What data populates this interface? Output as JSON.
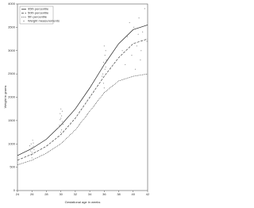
{
  "chart_data": {
    "type": "line",
    "x_label": "Gestational age in weeks",
    "y_label": "Weight in grams",
    "xlim": [
      24,
      42
    ],
    "xticks": [
      24,
      26,
      28,
      30,
      32,
      34,
      36,
      38,
      40,
      42
    ],
    "ylim": [
      0,
      4000
    ],
    "yticks": [
      0,
      500,
      1000,
      1500,
      2000,
      2500,
      3000,
      3500,
      4000
    ],
    "legend": "top-left",
    "series": [
      {
        "name": "95th percentile",
        "type": "line",
        "color": "#222222",
        "line_style": "solid",
        "x": [
          24,
          26,
          28,
          30,
          32,
          34,
          36,
          38,
          40,
          42
        ],
        "values": [
          750,
          900,
          1100,
          1400,
          1750,
          2200,
          2700,
          3150,
          3450,
          3550
        ]
      },
      {
        "name": "50th percentile",
        "type": "line",
        "color": "#444444",
        "line_style": "dashed",
        "x": [
          24,
          26,
          28,
          30,
          32,
          34,
          36,
          38,
          40,
          42
        ],
        "values": [
          650,
          780,
          950,
          1200,
          1550,
          2000,
          2450,
          2850,
          3150,
          3250
        ]
      },
      {
        "name": "5th percentile",
        "type": "line",
        "color": "#222222",
        "line_style": "dotted",
        "x": [
          24,
          26,
          28,
          30,
          32,
          34,
          36,
          38,
          40,
          42
        ],
        "values": [
          550,
          650,
          800,
          1000,
          1300,
          1700,
          2100,
          2350,
          2450,
          2500
        ]
      },
      {
        "name": "Weight measurements",
        "type": "scatter",
        "color": "#999999",
        "x": [
          25.8,
          26.0,
          26.1,
          25.9,
          26.2,
          26.0,
          26.3,
          25.7,
          26.1,
          26.0,
          25.9,
          26.2,
          29.8,
          30.0,
          30.1,
          29.9,
          30.2,
          30.0,
          30.3,
          29.7,
          30.1,
          30.0,
          29.9,
          30.2,
          35.8,
          36.0,
          36.1,
          35.9,
          36.2,
          36.0,
          36.3,
          35.7,
          36.1,
          36.0,
          35.9,
          36.2,
          38.5,
          39.2,
          39.8,
          40.1,
          40.5,
          40.8,
          41.0,
          41.3,
          41.6,
          41.9,
          40.3,
          39.5,
          41.1,
          40.7,
          38.9
        ],
        "values": [
          850,
          920,
          780,
          1000,
          950,
          700,
          880,
          960,
          1080,
          820,
          760,
          1020,
          1400,
          1550,
          1300,
          1650,
          1480,
          1750,
          1420,
          1350,
          1600,
          1250,
          1520,
          1700,
          2500,
          2700,
          2900,
          2300,
          2650,
          3100,
          2800,
          2450,
          2600,
          2200,
          2750,
          3000,
          3000,
          3300,
          2900,
          3500,
          3100,
          3700,
          2800,
          3400,
          3900,
          3200,
          2600,
          3600,
          3000,
          3350,
          2700
        ]
      }
    ]
  }
}
